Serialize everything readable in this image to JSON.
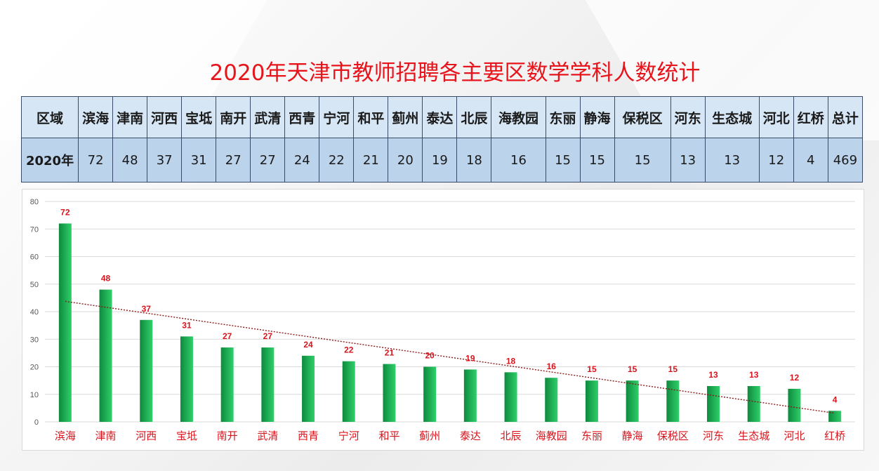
{
  "title": "2020年天津市教师招聘各主要区数学学科人数统计",
  "table": {
    "header_label": "区域",
    "row_label": "2020年",
    "columns": [
      "滨海",
      "津南",
      "河西",
      "宝坻",
      "南开",
      "武清",
      "西青",
      "宁河",
      "和平",
      "蓟州",
      "泰达",
      "北辰",
      "海教园",
      "东丽",
      "静海",
      "保税区",
      "河东",
      "生态城",
      "河北",
      "红桥",
      "总计"
    ],
    "values": [
      "72",
      "48",
      "37",
      "31",
      "27",
      "27",
      "24",
      "22",
      "21",
      "20",
      "19",
      "18",
      "16",
      "15",
      "15",
      "15",
      "13",
      "13",
      "12",
      "4",
      "469"
    ]
  },
  "chart_data": {
    "type": "bar",
    "title": "",
    "xlabel": "",
    "ylabel": "",
    "categories": [
      "滨海",
      "津南",
      "河西",
      "宝坻",
      "南开",
      "武清",
      "西青",
      "宁河",
      "和平",
      "蓟州",
      "泰达",
      "北辰",
      "海教园",
      "东丽",
      "静海",
      "保税区",
      "河东",
      "生态城",
      "河北",
      "红桥"
    ],
    "values": [
      72,
      48,
      37,
      31,
      27,
      27,
      24,
      22,
      21,
      20,
      19,
      18,
      16,
      15,
      15,
      15,
      13,
      13,
      12,
      4
    ],
    "ylim": [
      0,
      80
    ],
    "yticks": [
      0,
      10,
      20,
      30,
      40,
      50,
      60,
      70,
      80
    ],
    "grid": true,
    "data_labels": true,
    "trendline": "linear",
    "colors": {
      "bar_dark": "#0e8a3e",
      "bar_light": "#2fd06a",
      "label": "#d8141c",
      "category": "#d8141c",
      "trend": "#8b1a1a",
      "grid": "#d9d9d9",
      "axis_text": "#595959"
    }
  }
}
